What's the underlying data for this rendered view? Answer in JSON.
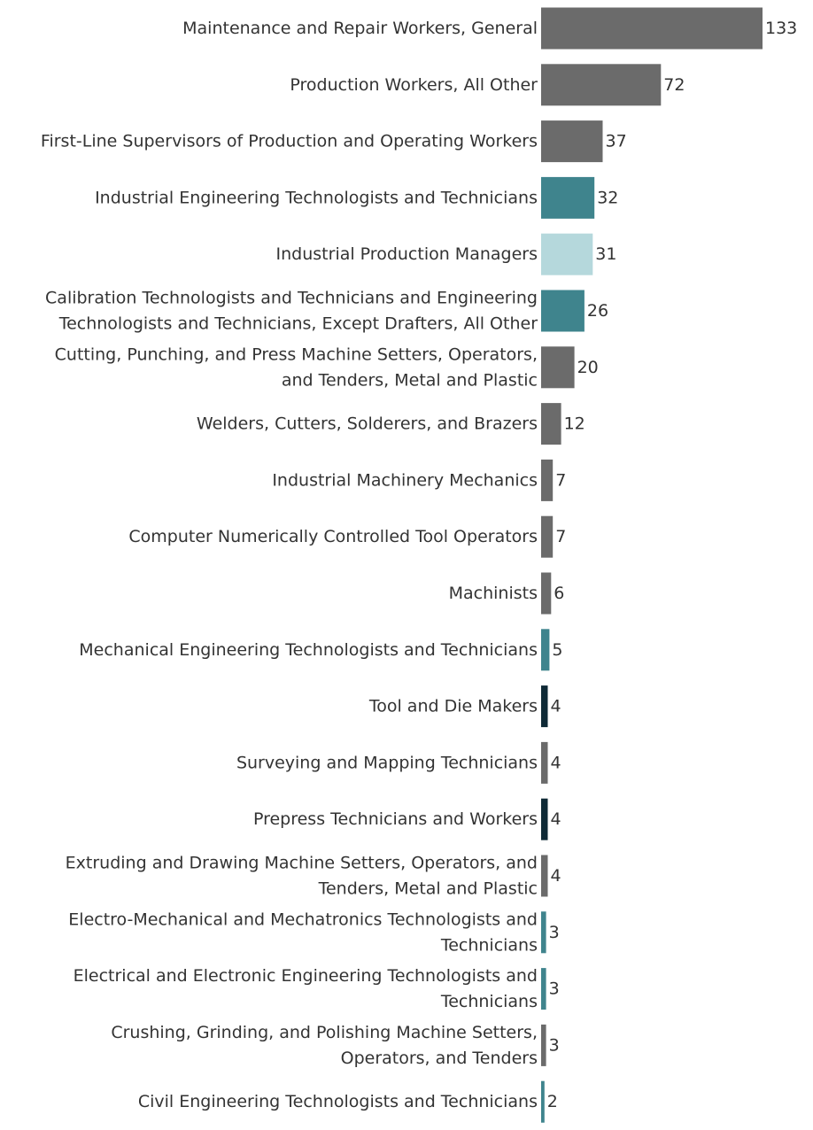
{
  "chart_data": {
    "type": "bar",
    "orientation": "horizontal",
    "title": "",
    "xlabel": "",
    "ylabel": "",
    "xlim": [
      0,
      133
    ],
    "grid": false,
    "legend": "none",
    "categories": [
      [
        "Maintenance and Repair Workers, General"
      ],
      [
        "Production Workers, All Other"
      ],
      [
        "First-Line Supervisors of Production and Operating Workers"
      ],
      [
        "Industrial Engineering Technologists and Technicians"
      ],
      [
        "Industrial Production Managers"
      ],
      [
        "Calibration Technologists and Technicians and Engineering",
        "Technologists and Technicians, Except Drafters, All Other"
      ],
      [
        "Cutting, Punching, and Press Machine Setters, Operators,",
        "and Tenders, Metal and Plastic"
      ],
      [
        "Welders, Cutters, Solderers, and Brazers"
      ],
      [
        "Industrial Machinery Mechanics"
      ],
      [
        "Computer Numerically Controlled Tool Operators"
      ],
      [
        "Machinists"
      ],
      [
        "Mechanical Engineering Technologists and Technicians"
      ],
      [
        "Tool and Die Makers"
      ],
      [
        "Surveying and Mapping Technicians"
      ],
      [
        "Prepress Technicians and Workers"
      ],
      [
        "Extruding and Drawing Machine Setters, Operators, and",
        "Tenders, Metal and Plastic"
      ],
      [
        "Electro-Mechanical and Mechatronics Technologists and",
        "Technicians"
      ],
      [
        "Electrical and Electronic Engineering Technologists and",
        "Technicians"
      ],
      [
        "Crushing, Grinding, and Polishing Machine Setters,",
        "Operators, and Tenders"
      ],
      [
        "Civil Engineering Technologists and Technicians"
      ]
    ],
    "values": [
      133,
      72,
      37,
      32,
      31,
      26,
      20,
      12,
      7,
      7,
      6,
      5,
      4,
      4,
      4,
      4,
      3,
      3,
      3,
      2
    ],
    "colors": [
      "#6b6b6b",
      "#6b6b6b",
      "#6b6b6b",
      "#3f848d",
      "#b5d8dc",
      "#3f848d",
      "#6b6b6b",
      "#6b6b6b",
      "#6b6b6b",
      "#6b6b6b",
      "#6b6b6b",
      "#3f848d",
      "#0f2a36",
      "#6b6b6b",
      "#0f2a36",
      "#6b6b6b",
      "#3f848d",
      "#3f848d",
      "#6b6b6b",
      "#3f848d"
    ]
  }
}
